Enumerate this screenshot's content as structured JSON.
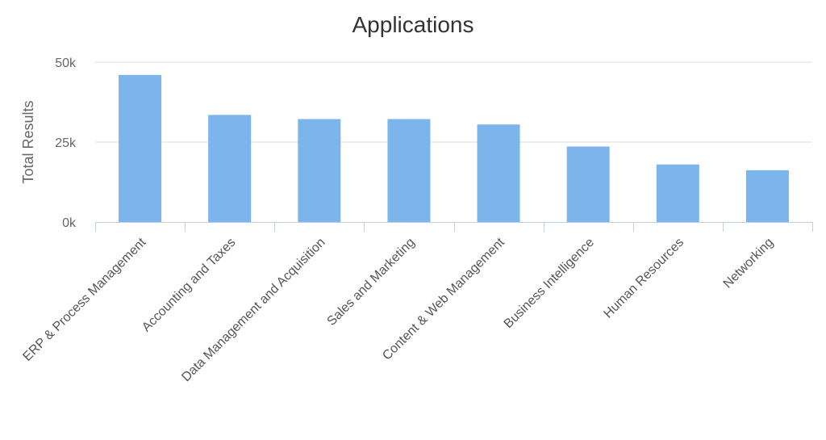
{
  "chart_data": {
    "type": "bar",
    "title": "Applications",
    "xlabel": "",
    "ylabel": "Total Results",
    "categories": [
      "ERP & Process Management",
      "Accounting and Taxes",
      "Data Management and Acquisition",
      "Sales and Marketing",
      "Content & Web Management",
      "Business Intelligence",
      "Human Resources",
      "Networking"
    ],
    "values": [
      46000,
      33500,
      32200,
      32200,
      30500,
      23600,
      18000,
      16200
    ],
    "ylim": [
      0,
      50000
    ],
    "yticks": [
      {
        "value": 0,
        "label": "0k"
      },
      {
        "value": 25000,
        "label": "25k"
      },
      {
        "value": 50000,
        "label": "50k"
      }
    ],
    "grid": true,
    "legend": "none",
    "colors": {
      "bar": "#7cb5ec",
      "grid": "#d8dee6",
      "axis": "#c0d0e0",
      "title": "#333333",
      "label": "#666666"
    }
  }
}
